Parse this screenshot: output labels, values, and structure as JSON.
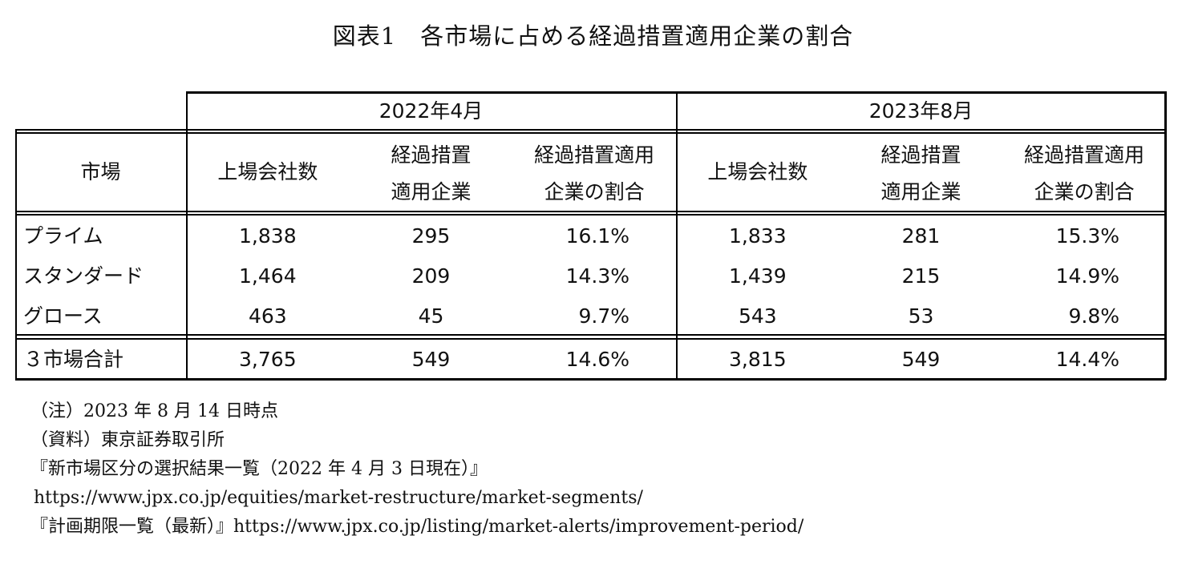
{
  "title": "図表1　各市場に占める経過措置適用企業の割合",
  "table": {
    "periods": [
      "2022年4月",
      "2023年8月"
    ],
    "market_header": "市場",
    "col_headers": [
      {
        "line1": "上場会社数",
        "line2": ""
      },
      {
        "line1": "経過措置",
        "line2": "適用企業"
      },
      {
        "line1": "経過措置適用",
        "line2": "企業の割合"
      }
    ],
    "rows": [
      {
        "market": "プライム",
        "cells": [
          "1,838",
          "295",
          "16.1%",
          "1,833",
          "281",
          "15.3%"
        ]
      },
      {
        "market": "スタンダード",
        "cells": [
          "1,464",
          "209",
          "14.3%",
          "1,439",
          "215",
          "14.9%"
        ]
      },
      {
        "market": "グロース",
        "cells": [
          "463",
          "45",
          "9.7%",
          "543",
          "53",
          "9.8%"
        ]
      }
    ],
    "total": {
      "market": "３市場合計",
      "cells": [
        "3,765",
        "549",
        "14.6%",
        "3,815",
        "549",
        "14.4%"
      ]
    }
  },
  "notes": {
    "note": "（注）2023 年 8 月 14 日時点",
    "source": "（資料）東京証券取引所",
    "doc1": "『新市場区分の選択結果一覧（2022 年 4 月 3 日現在）』",
    "url1": "https://www.jpx.co.jp/equities/market-restructure/market-segments/",
    "doc2": "『計画期限一覧（最新）』https://www.jpx.co.jp/listing/market-alerts/improvement-period/"
  }
}
